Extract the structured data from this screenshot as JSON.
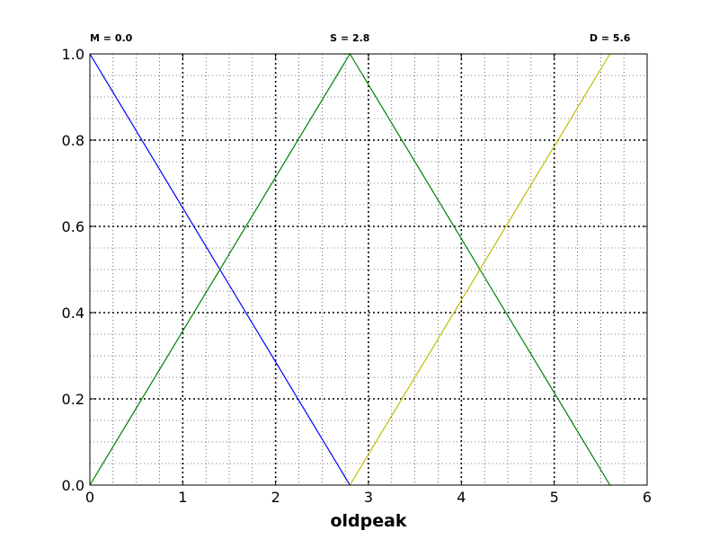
{
  "chart_data": {
    "type": "line",
    "title": "",
    "xlabel": "oldpeak",
    "ylabel": "",
    "xlim": [
      0,
      6
    ],
    "ylim": [
      0,
      1
    ],
    "grid": true,
    "x_ticks": [
      0,
      1,
      2,
      3,
      4,
      5,
      6
    ],
    "x_tick_labels": [
      "0",
      "1",
      "2",
      "3",
      "4",
      "5",
      "6"
    ],
    "y_ticks": [
      0,
      0.2,
      0.4,
      0.6,
      0.8,
      1.0
    ],
    "y_tick_labels": [
      "0.0",
      "0.2",
      "0.4",
      "0.6",
      "0.8",
      "1.0"
    ],
    "x_minor_step": 0.25,
    "y_minor_step": 0.05,
    "series": [
      {
        "name": "M",
        "color": "#0000ff",
        "x": [
          0,
          2.8
        ],
        "y": [
          1,
          0
        ]
      },
      {
        "name": "S",
        "color": "#008000",
        "x": [
          0,
          2.8,
          5.6
        ],
        "y": [
          0,
          1,
          0
        ]
      },
      {
        "name": "D",
        "color": "#bfbf00",
        "x": [
          2.8,
          5.6
        ],
        "y": [
          0,
          1
        ]
      }
    ],
    "annotations": [
      {
        "text": "M = 0.0",
        "x": 0.0,
        "anchor": "start"
      },
      {
        "text": "S = 2.8",
        "x": 2.8,
        "anchor": "middle"
      },
      {
        "text": "D = 5.6",
        "x": 5.6,
        "anchor": "middle"
      }
    ]
  }
}
